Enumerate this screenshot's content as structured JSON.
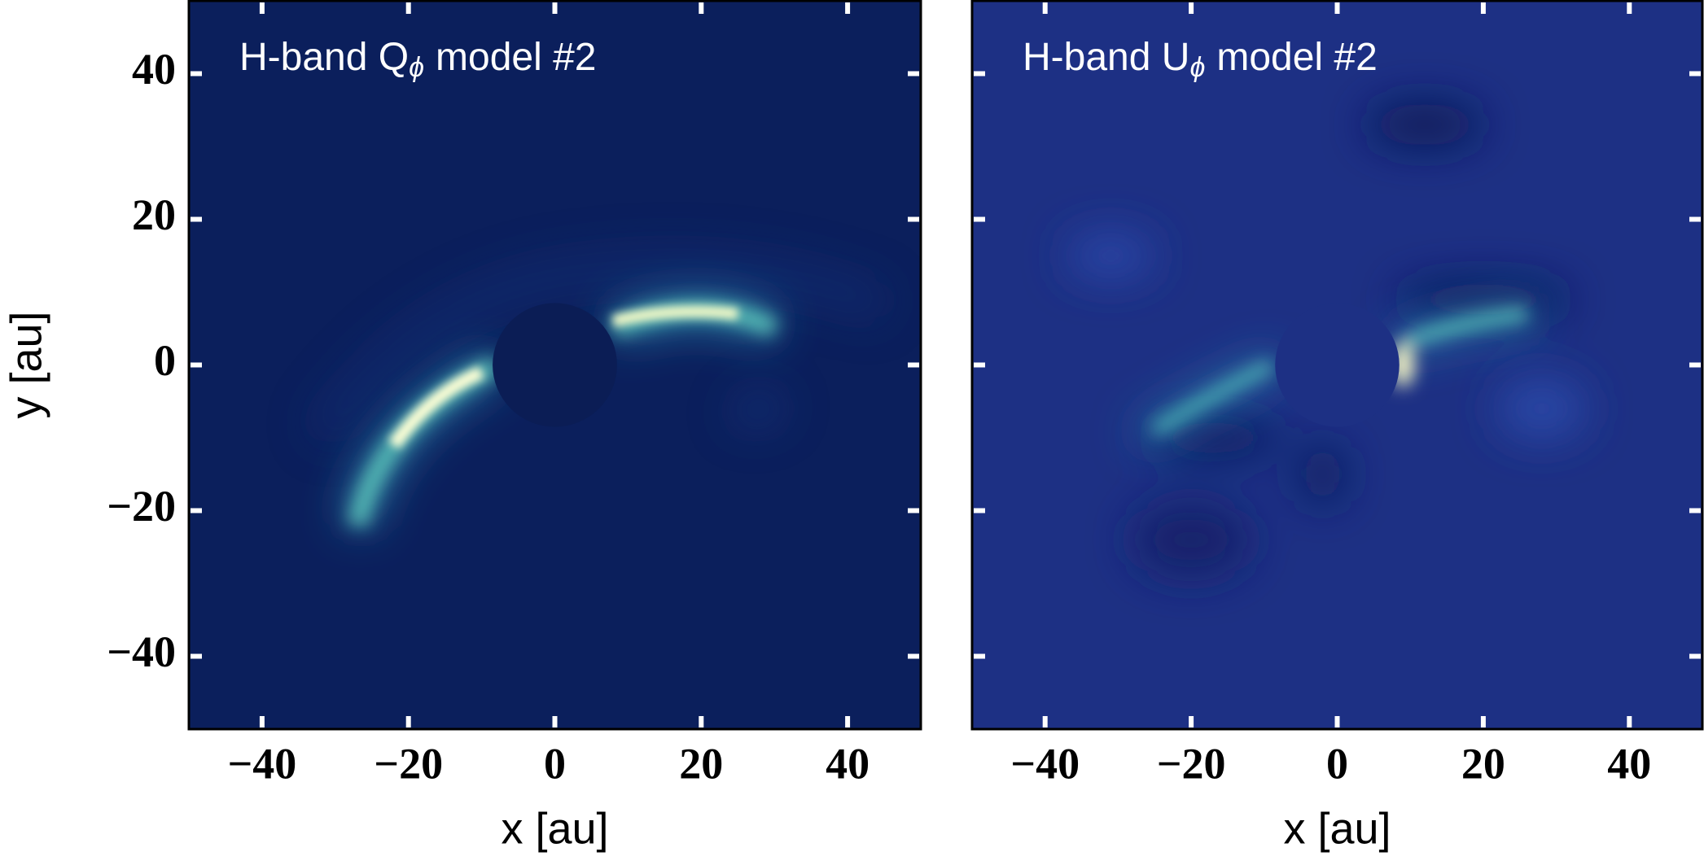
{
  "chart_data": [
    {
      "type": "image",
      "title": {
        "main": "H-band Q",
        "sub": "ϕ",
        "rest": "model #2"
      },
      "xlabel": "x [au]",
      "ylabel": "y [au]",
      "xlim": [
        -50,
        50
      ],
      "ylim": [
        -50,
        50
      ],
      "xticks": [
        {
          "value": -40,
          "label": "−40"
        },
        {
          "value": -20,
          "label": "−20"
        },
        0,
        20,
        40
      ],
      "yticks": [
        {
          "value": -40,
          "label": "−40"
        },
        {
          "value": -20,
          "label": "−20"
        },
        0,
        20,
        40
      ],
      "color": "#0b1f5c"
    },
    {
      "type": "image",
      "title": {
        "main": "H-band U",
        "sub": "ϕ",
        "rest": "model #2"
      },
      "xlabel": "x [au]",
      "xlim": [
        -50,
        50
      ],
      "ylim": [
        -50,
        50
      ],
      "xticks": [
        {
          "value": -40,
          "label": "−40"
        },
        {
          "value": -20,
          "label": "−20"
        },
        0,
        20,
        40
      ],
      "yticks": [
        -40,
        -20,
        0,
        20,
        40
      ],
      "ytick_labels": false,
      "color": "#1d3084"
    }
  ]
}
